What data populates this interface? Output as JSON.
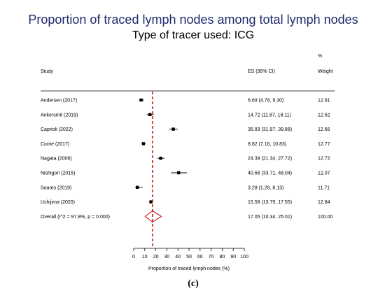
{
  "chart_data": {
    "type": "forest",
    "title": "Proportion of traced lymph nodes among total lymph nodes",
    "subtitle": "Type of tracer used: ICG",
    "columns": {
      "study": "Study",
      "es": "ES (95% CI)",
      "weight_unit": "%",
      "weight": "Weight"
    },
    "studies": [
      {
        "label": "Andersen (2017)",
        "es": 6.69,
        "lo": 4.78,
        "hi": 9.3,
        "es_text": "6.69 (4.78, 9.30)",
        "weight_text": "12.61"
      },
      {
        "label": "Ankersmit (2019)",
        "es": 14.72,
        "lo": 11.87,
        "hi": 18.11,
        "es_text": "14.72 (11.87, 18.11)",
        "weight_text": "12.62"
      },
      {
        "label": "Caprioli (2022)",
        "es": 35.83,
        "lo": 31.97,
        "hi": 39.88,
        "es_text": "35.83 (31.97, 39.88)",
        "weight_text": "12.66"
      },
      {
        "label": "Currie (2017)",
        "es": 8.82,
        "lo": 7.16,
        "hi": 10.83,
        "es_text": "8.82 (7.16, 10.83)",
        "weight_text": "12.77"
      },
      {
        "label": "Nagata (2006)",
        "es": 24.39,
        "lo": 21.34,
        "hi": 27.72,
        "es_text": "24.39 (21.34, 27.72)",
        "weight_text": "12.72"
      },
      {
        "label": "Nishigori (2015)",
        "es": 40.68,
        "lo": 33.71,
        "hi": 48.04,
        "es_text": "40.68 (33.71, 48.04)",
        "weight_text": "12.07"
      },
      {
        "label": "Soares (2019)",
        "es": 3.28,
        "lo": 1.28,
        "hi": 8.13,
        "es_text": "3.28 (1.28, 8.13)",
        "weight_text": "11.71"
      },
      {
        "label": "Ushijima (2020)",
        "es": 15.58,
        "lo": 13.79,
        "hi": 17.55,
        "es_text": "15.58 (13.79, 17.55)",
        "weight_text": "12.84"
      }
    ],
    "overall": {
      "label": "Overall  (I^2 = 97.8%, p = 0.000)",
      "es": 17.05,
      "lo": 10.34,
      "hi": 25.01,
      "es_text": "17.05 (10.34, 25.01)",
      "weight_text": "100.00"
    },
    "x_ticks": [
      0,
      10,
      20,
      30,
      40,
      50,
      60,
      70,
      80,
      90,
      100
    ],
    "xlim": [
      0,
      100
    ],
    "xlabel": "Proportion of traced lymph nodes (%)",
    "colors": {
      "title": "#1f2a6b",
      "reference_line": "#cc0000",
      "diamond": "#cc0000",
      "marker": "#000000"
    }
  },
  "caption": "(c)"
}
